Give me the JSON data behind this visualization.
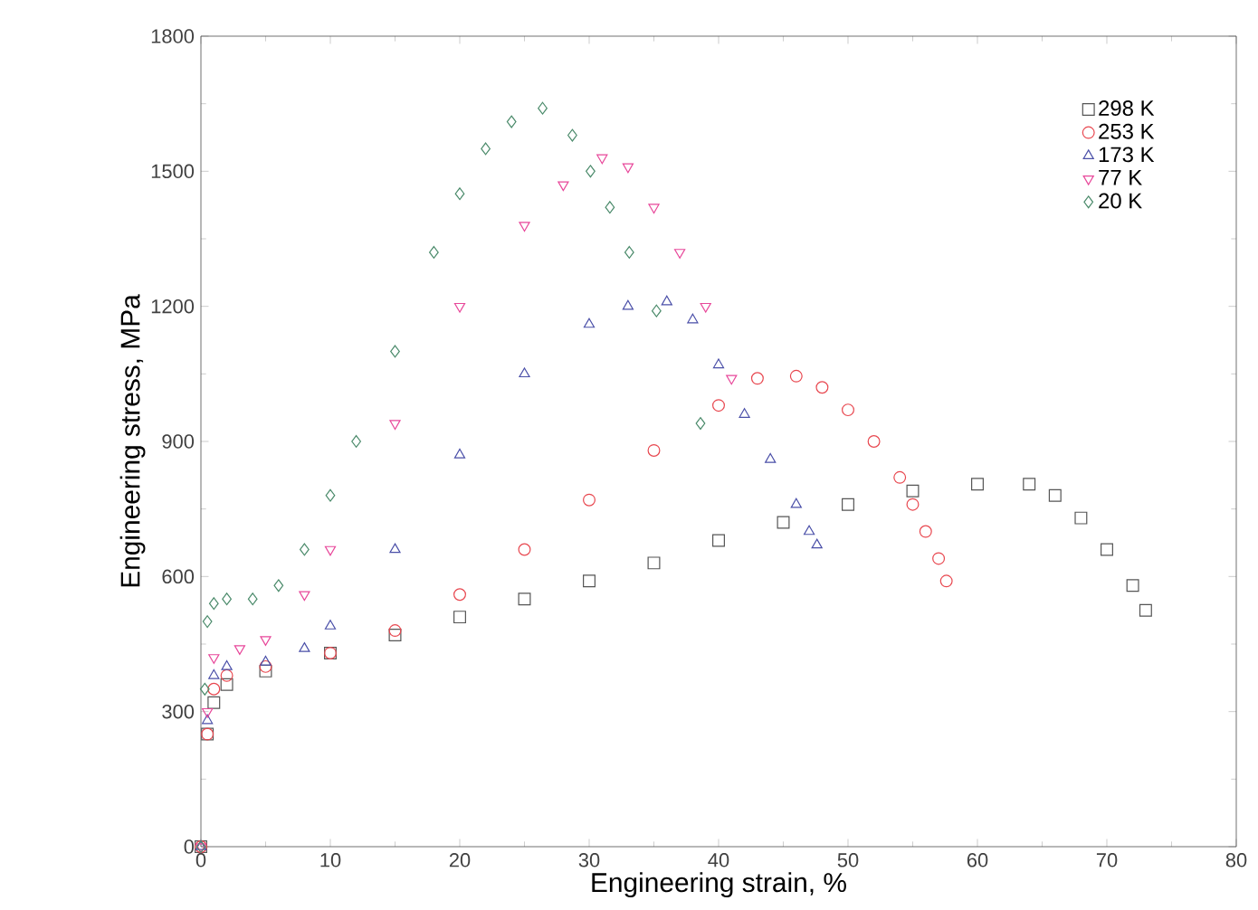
{
  "chart_data": {
    "type": "scatter",
    "xlabel": "Engineering strain, %",
    "ylabel": "Engineering stress, MPa",
    "xlim": [
      0,
      80
    ],
    "ylim": [
      0,
      1800
    ],
    "xticks": [
      0,
      10,
      20,
      30,
      40,
      50,
      60,
      70,
      80
    ],
    "yticks": [
      0,
      300,
      600,
      900,
      1200,
      1500,
      1800
    ],
    "legend": "top right",
    "grid": false,
    "series": [
      {
        "name": "298 K",
        "color": "#555555",
        "marker": "square",
        "x": [
          0,
          0.5,
          1,
          2,
          5,
          10,
          15,
          20,
          25,
          30,
          35,
          40,
          45,
          50,
          55,
          60,
          64,
          66,
          68,
          70,
          72,
          73
        ],
        "values": [
          0,
          250,
          320,
          360,
          390,
          430,
          470,
          510,
          550,
          590,
          630,
          680,
          720,
          760,
          790,
          805,
          805,
          780,
          730,
          660,
          580,
          525
        ]
      },
      {
        "name": "253 K",
        "color": "#e8474f",
        "marker": "circle",
        "x": [
          0,
          0.5,
          1,
          2,
          5,
          10,
          15,
          20,
          25,
          30,
          35,
          40,
          43,
          46,
          48,
          50,
          52,
          54,
          55,
          56,
          57,
          57.6
        ],
        "values": [
          0,
          250,
          350,
          380,
          400,
          430,
          480,
          560,
          660,
          770,
          880,
          980,
          1040,
          1045,
          1020,
          970,
          900,
          820,
          760,
          700,
          640,
          590
        ]
      },
      {
        "name": "173 K",
        "color": "#4a4fa8",
        "marker": "triangle",
        "x": [
          0,
          0.5,
          1,
          2,
          5,
          8,
          10,
          15,
          20,
          25,
          30,
          33,
          36,
          38,
          40,
          42,
          44,
          46,
          47,
          47.6
        ],
        "values": [
          0,
          280,
          380,
          400,
          410,
          440,
          490,
          660,
          870,
          1050,
          1160,
          1200,
          1210,
          1170,
          1070,
          960,
          860,
          760,
          700,
          670
        ]
      },
      {
        "name": "77 K",
        "color": "#e8479a",
        "marker": "triangle-down",
        "x": [
          0,
          0.5,
          1,
          3,
          5,
          8,
          10,
          15,
          20,
          25,
          28,
          31,
          33,
          35,
          37,
          39,
          41
        ],
        "values": [
          0,
          300,
          420,
          440,
          460,
          560,
          660,
          940,
          1200,
          1380,
          1470,
          1530,
          1510,
          1420,
          1320,
          1200,
          1040
        ]
      },
      {
        "name": "20 K",
        "color": "#4a8a6a",
        "marker": "diamond",
        "x": [
          0,
          0.3,
          0.5,
          1,
          2,
          4,
          6,
          8,
          10,
          12,
          15,
          18,
          20,
          22,
          24,
          26.4,
          28.7,
          30.1,
          31.6,
          33.1,
          35.2,
          38.6
        ],
        "values": [
          0,
          350,
          500,
          540,
          550,
          550,
          580,
          660,
          780,
          900,
          1100,
          1320,
          1450,
          1550,
          1610,
          1640,
          1580,
          1500,
          1420,
          1320,
          1190,
          940
        ]
      }
    ]
  }
}
